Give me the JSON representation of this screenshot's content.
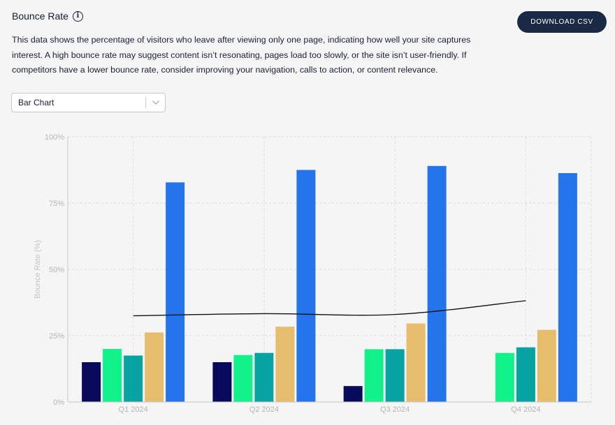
{
  "header": {
    "title": "Bounce Rate",
    "description": "This data shows the percentage of visitors who leave after viewing only one page, indicating how well your site captures interest. A high bounce rate may suggest content isn’t resonating, pages load too slowly, or the site isn’t user-friendly. If competitors have a lower bounce rate, consider improving your navigation, calls to action, or content relevance.",
    "download_label": "DOWNLOAD CSV"
  },
  "controls": {
    "chart_type_selected": "Bar Chart"
  },
  "colors": {
    "background": "#f5f5f5",
    "button": "#1a2a45",
    "grid": "#dcdcdc",
    "axis": "#c8c8c8",
    "line": "#111111"
  },
  "chart_data": {
    "type": "bar",
    "categories": [
      "Q1 2024",
      "Q2 2024",
      "Q3 2024",
      "Q4 2024"
    ],
    "ylabel": "Bounce Rate (%)",
    "ylim": [
      0,
      100
    ],
    "yticks": [
      "0%",
      "25%",
      "50%",
      "75%",
      "100%"
    ],
    "grid": true,
    "series": [
      {
        "color": "#0a0a5c",
        "values": [
          15,
          15,
          6,
          null
        ]
      },
      {
        "color": "#12f28a",
        "values": [
          20,
          17.7,
          19.9,
          18.5
        ]
      },
      {
        "color": "#07a3a3",
        "values": [
          17.5,
          18.5,
          19.9,
          20.6
        ]
      },
      {
        "color": "#e6bd6c",
        "values": [
          26.2,
          28.4,
          29.6,
          27.2
        ]
      },
      {
        "color": "#2475eb",
        "values": [
          82.8,
          87.5,
          89,
          86.3
        ]
      }
    ],
    "trend_line": {
      "type": "line",
      "color": "#111111",
      "values": [
        32.5,
        33.3,
        33,
        38.2
      ]
    }
  }
}
